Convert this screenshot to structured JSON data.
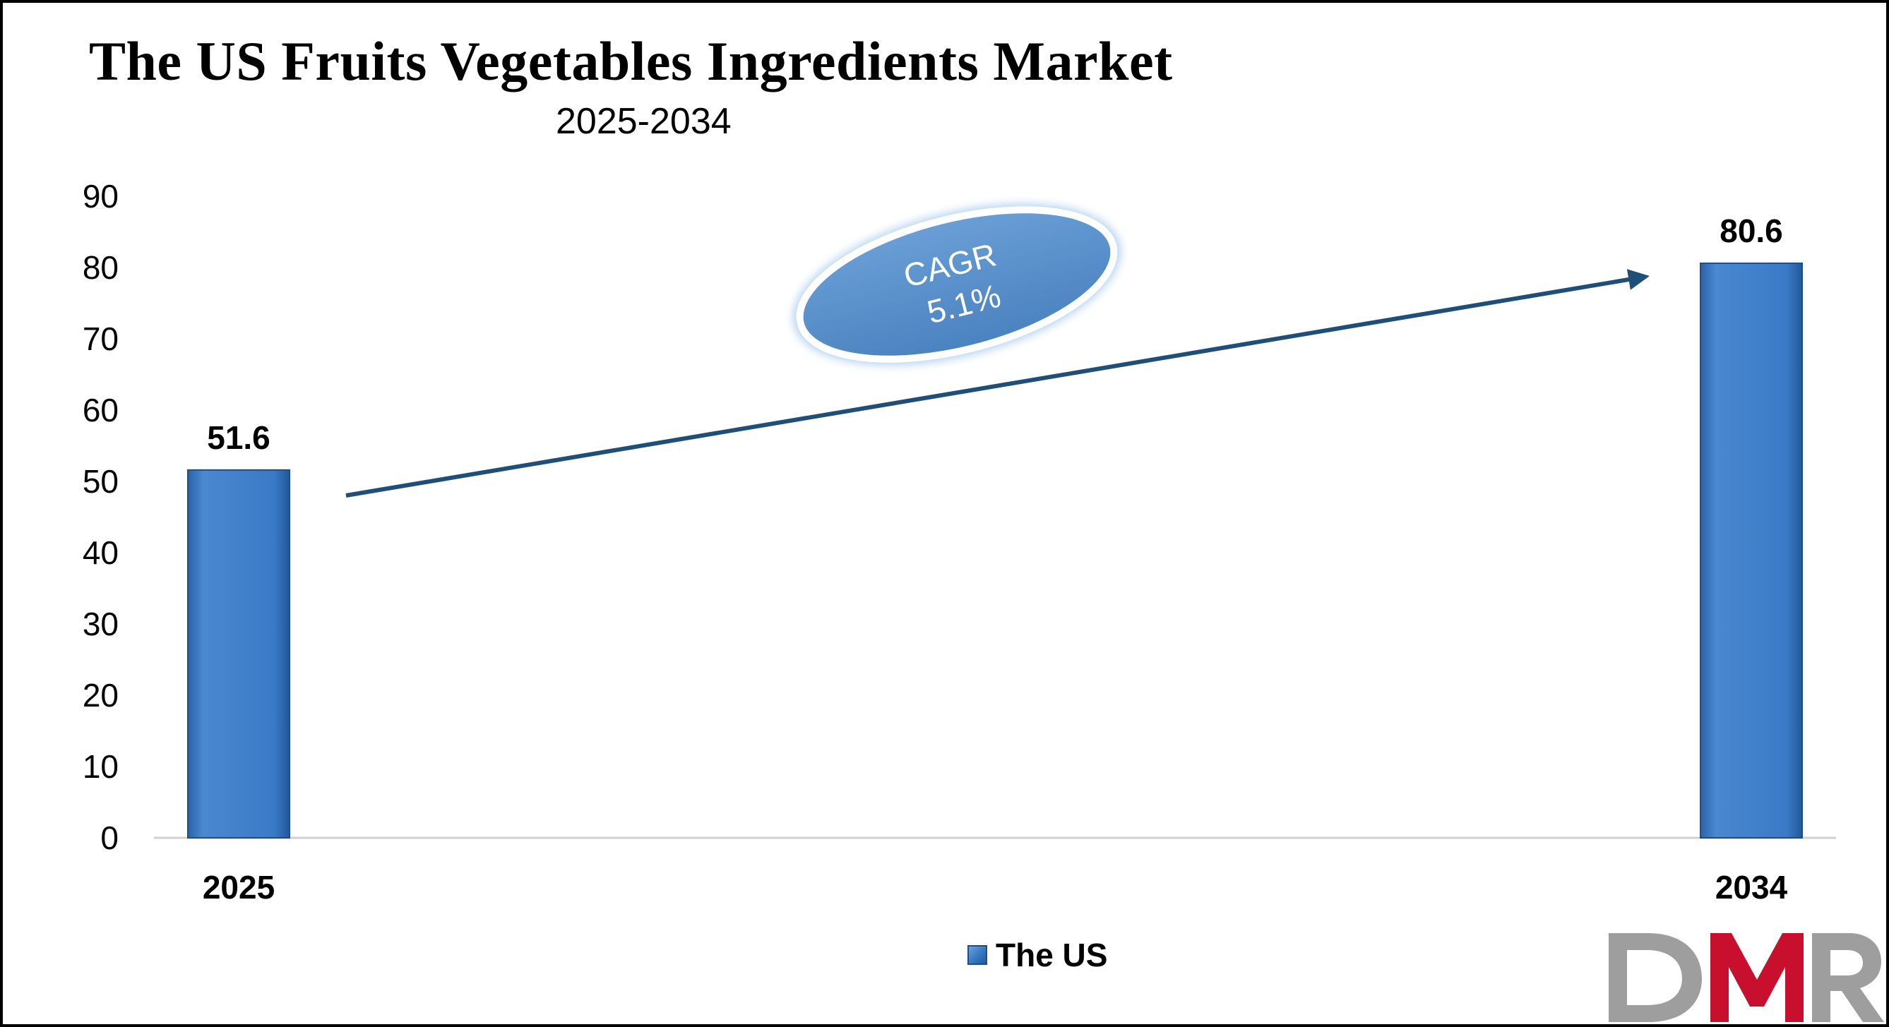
{
  "chart_data": {
    "type": "bar",
    "title": "The US Fruits Vegetables Ingredients Market",
    "subtitle": "2025-2034",
    "categories": [
      "2025",
      "2034"
    ],
    "series": [
      {
        "name": "The US",
        "values": [
          51.6,
          80.6
        ],
        "color": "#3a7ac6"
      }
    ],
    "data_labels": [
      "51.6",
      "80.6"
    ],
    "y_ticks": [
      "0",
      "10",
      "20",
      "30",
      "40",
      "50",
      "60",
      "70",
      "80",
      "90"
    ],
    "ylim": [
      0,
      90
    ],
    "xlabel": "",
    "ylabel": "",
    "grid": false,
    "legend_position": "bottom",
    "annotation": {
      "line1": "CAGR",
      "line2": "5.1%"
    }
  },
  "logo": {
    "text": "DMR",
    "colors": [
      "#9e9e9e",
      "#c8102e"
    ]
  }
}
